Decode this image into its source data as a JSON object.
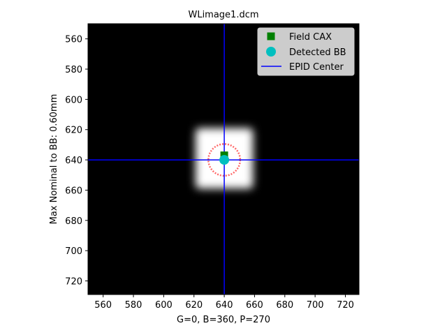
{
  "chart_data": {
    "type": "scatter",
    "title": "WLimage1.dcm",
    "xlabel": "G=0, B=360, P=270",
    "ylabel": "Max Nominal to BB: 0.60mm",
    "xlim": [
      550,
      729
    ],
    "ylim": [
      729,
      550
    ],
    "y_inverted": true,
    "x_ticks": [
      560,
      580,
      600,
      620,
      640,
      660,
      680,
      700,
      720
    ],
    "y_ticks": [
      560,
      580,
      600,
      620,
      640,
      660,
      680,
      700,
      720
    ],
    "grid": false,
    "background": "#000000",
    "image": {
      "description": "EPID field image",
      "field_x_range": [
        621,
        659
      ],
      "field_y_range": [
        619,
        659
      ],
      "field_color": "#ffffff"
    },
    "bb_contour": {
      "center": [
        640,
        640
      ],
      "radius": 10.5,
      "color": "#ff4444"
    },
    "series": [
      {
        "name": "Field CAX",
        "marker": "square",
        "color": "#007f00",
        "points": [
          [
            640,
            637
          ]
        ]
      },
      {
        "name": "Detected BB",
        "marker": "circle",
        "color": "#00bfbf",
        "points": [
          [
            640,
            640
          ]
        ]
      },
      {
        "name": "EPID Center",
        "marker": "line",
        "color": "#0000ff",
        "x_line": 640,
        "y_line": 640
      }
    ],
    "legend_position": "top-right"
  }
}
